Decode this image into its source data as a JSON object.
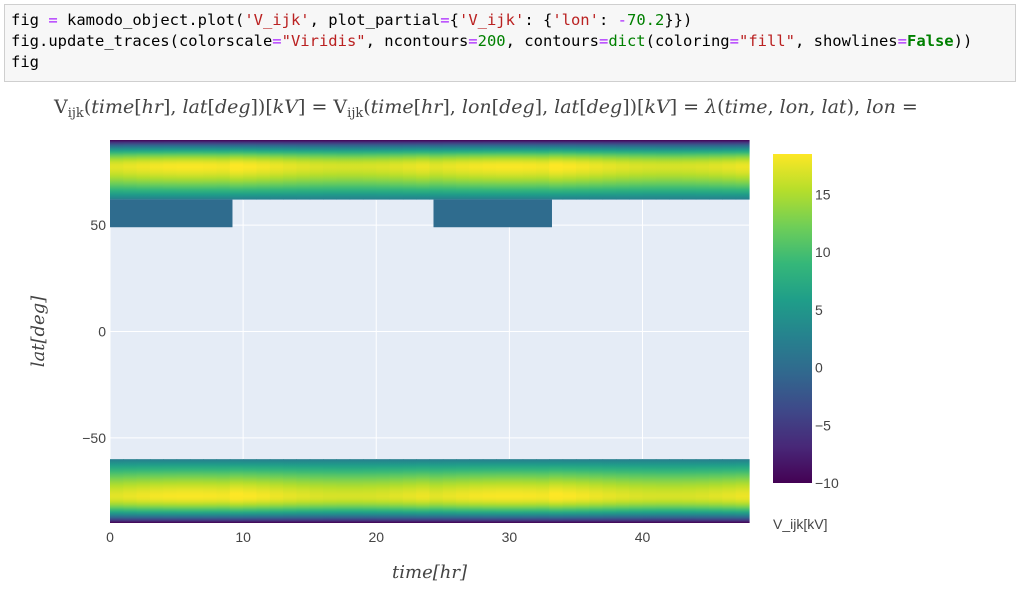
{
  "code": {
    "lines": [
      [
        {
          "t": "fig ",
          "c": ""
        },
        {
          "t": "=",
          "c": "op"
        },
        {
          "t": " kamodo_object.plot(",
          "c": ""
        },
        {
          "t": "'V_ijk'",
          "c": "str"
        },
        {
          "t": ", plot_partial",
          "c": ""
        },
        {
          "t": "=",
          "c": "op"
        },
        {
          "t": "{",
          "c": ""
        },
        {
          "t": "'V_ijk'",
          "c": "str"
        },
        {
          "t": ": {",
          "c": ""
        },
        {
          "t": "'lon'",
          "c": "str"
        },
        {
          "t": ": ",
          "c": ""
        },
        {
          "t": "-",
          "c": "op"
        },
        {
          "t": "70.2",
          "c": "num"
        },
        {
          "t": "}})",
          "c": ""
        }
      ],
      [
        {
          "t": "fig.update_traces(colorscale",
          "c": ""
        },
        {
          "t": "=",
          "c": "op"
        },
        {
          "t": "\"Viridis\"",
          "c": "str"
        },
        {
          "t": ", ncontours",
          "c": ""
        },
        {
          "t": "=",
          "c": "op"
        },
        {
          "t": "200",
          "c": "num"
        },
        {
          "t": ", contours",
          "c": ""
        },
        {
          "t": "=",
          "c": "op"
        },
        {
          "t": "dict",
          "c": "fn"
        },
        {
          "t": "(coloring",
          "c": ""
        },
        {
          "t": "=",
          "c": "op"
        },
        {
          "t": "\"fill\"",
          "c": "str"
        },
        {
          "t": ", showlines",
          "c": ""
        },
        {
          "t": "=",
          "c": "op"
        },
        {
          "t": "False",
          "c": "kw"
        },
        {
          "t": "))",
          "c": ""
        }
      ],
      [
        {
          "t": "fig",
          "c": ""
        }
      ]
    ]
  },
  "title": {
    "parts": [
      {
        "t": "V",
        "s": "n"
      },
      {
        "t": "ijk",
        "s": "sub"
      },
      {
        "t": "(",
        "s": "n"
      },
      {
        "t": "time",
        "s": "i"
      },
      {
        "t": "[",
        "s": "n"
      },
      {
        "t": "hr",
        "s": "i"
      },
      {
        "t": "], ",
        "s": "n"
      },
      {
        "t": "lat",
        "s": "i"
      },
      {
        "t": "[",
        "s": "n"
      },
      {
        "t": "deg",
        "s": "i"
      },
      {
        "t": "])[",
        "s": "n"
      },
      {
        "t": "kV",
        "s": "i"
      },
      {
        "t": "] = ",
        "s": "n"
      },
      {
        "t": "V",
        "s": "n"
      },
      {
        "t": "ijk",
        "s": "sub"
      },
      {
        "t": "(",
        "s": "n"
      },
      {
        "t": "time",
        "s": "i"
      },
      {
        "t": "[",
        "s": "n"
      },
      {
        "t": "hr",
        "s": "i"
      },
      {
        "t": "], ",
        "s": "n"
      },
      {
        "t": "lon",
        "s": "i"
      },
      {
        "t": "[",
        "s": "n"
      },
      {
        "t": "deg",
        "s": "i"
      },
      {
        "t": "], ",
        "s": "n"
      },
      {
        "t": "lat",
        "s": "i"
      },
      {
        "t": "[",
        "s": "n"
      },
      {
        "t": "deg",
        "s": "i"
      },
      {
        "t": "])[",
        "s": "n"
      },
      {
        "t": "kV",
        "s": "i"
      },
      {
        "t": "] = ",
        "s": "n"
      },
      {
        "t": "λ",
        "s": "i"
      },
      {
        "t": "(",
        "s": "n"
      },
      {
        "t": "time",
        "s": "i"
      },
      {
        "t": ", ",
        "s": "n"
      },
      {
        "t": "lon",
        "s": "i"
      },
      {
        "t": ", ",
        "s": "n"
      },
      {
        "t": "lat",
        "s": "i"
      },
      {
        "t": "), ",
        "s": "n"
      },
      {
        "t": "lon",
        "s": "i"
      },
      {
        "t": " =",
        "s": "n"
      }
    ]
  },
  "chart_data": {
    "type": "heatmap",
    "colorscale": "Viridis",
    "viridis": [
      "#440154",
      "#482878",
      "#3e4989",
      "#31688e",
      "#26828e",
      "#1f9e89",
      "#35b779",
      "#6ece58",
      "#b5de2b",
      "#fde725"
    ],
    "colors": {
      "plot_bg": "#e5ecf6",
      "grid": "#ffffff",
      "text": "#444444"
    },
    "xaxis": {
      "label": "time[hr]",
      "range": [
        0,
        48
      ],
      "ticks": [
        0,
        10,
        20,
        30,
        40
      ]
    },
    "yaxis": {
      "label": "lat[deg]",
      "range": [
        -90,
        90
      ],
      "ticks": [
        50,
        0,
        -50
      ]
    },
    "colorbar": {
      "title": "V_ijk[kV]",
      "range": [
        -10,
        18.5
      ],
      "ticks": [
        15,
        10,
        5,
        0,
        -5,
        -10
      ],
      "tick_labels": [
        "15",
        "10",
        "5",
        "0",
        "−5",
        "−10"
      ]
    },
    "filled_bands": [
      {
        "name": "north",
        "lat_range": [
          62,
          90
        ],
        "peak_lat": 77.5,
        "peak_value": 18,
        "edge_value": 2,
        "pole_value": -10
      },
      {
        "name": "south",
        "lat_range": [
          -90,
          -60
        ],
        "peak_lat": -77.5,
        "peak_value": 18,
        "edge_value": 2,
        "pole_value": -10
      }
    ],
    "filled_blocks": [
      {
        "time_range": [
          0,
          9.2
        ],
        "lat_range": [
          49,
          62
        ],
        "value": 0
      },
      {
        "time_range": [
          24.3,
          33.2
        ],
        "lat_range": [
          49,
          62
        ],
        "value": 0
      }
    ],
    "band_modulation": {
      "period_hr": 24,
      "phase_hr": 6,
      "amplitude": 1.2,
      "dim_segments": [
        [
          0,
          9.2
        ],
        [
          24.3,
          33.2
        ]
      ]
    }
  }
}
